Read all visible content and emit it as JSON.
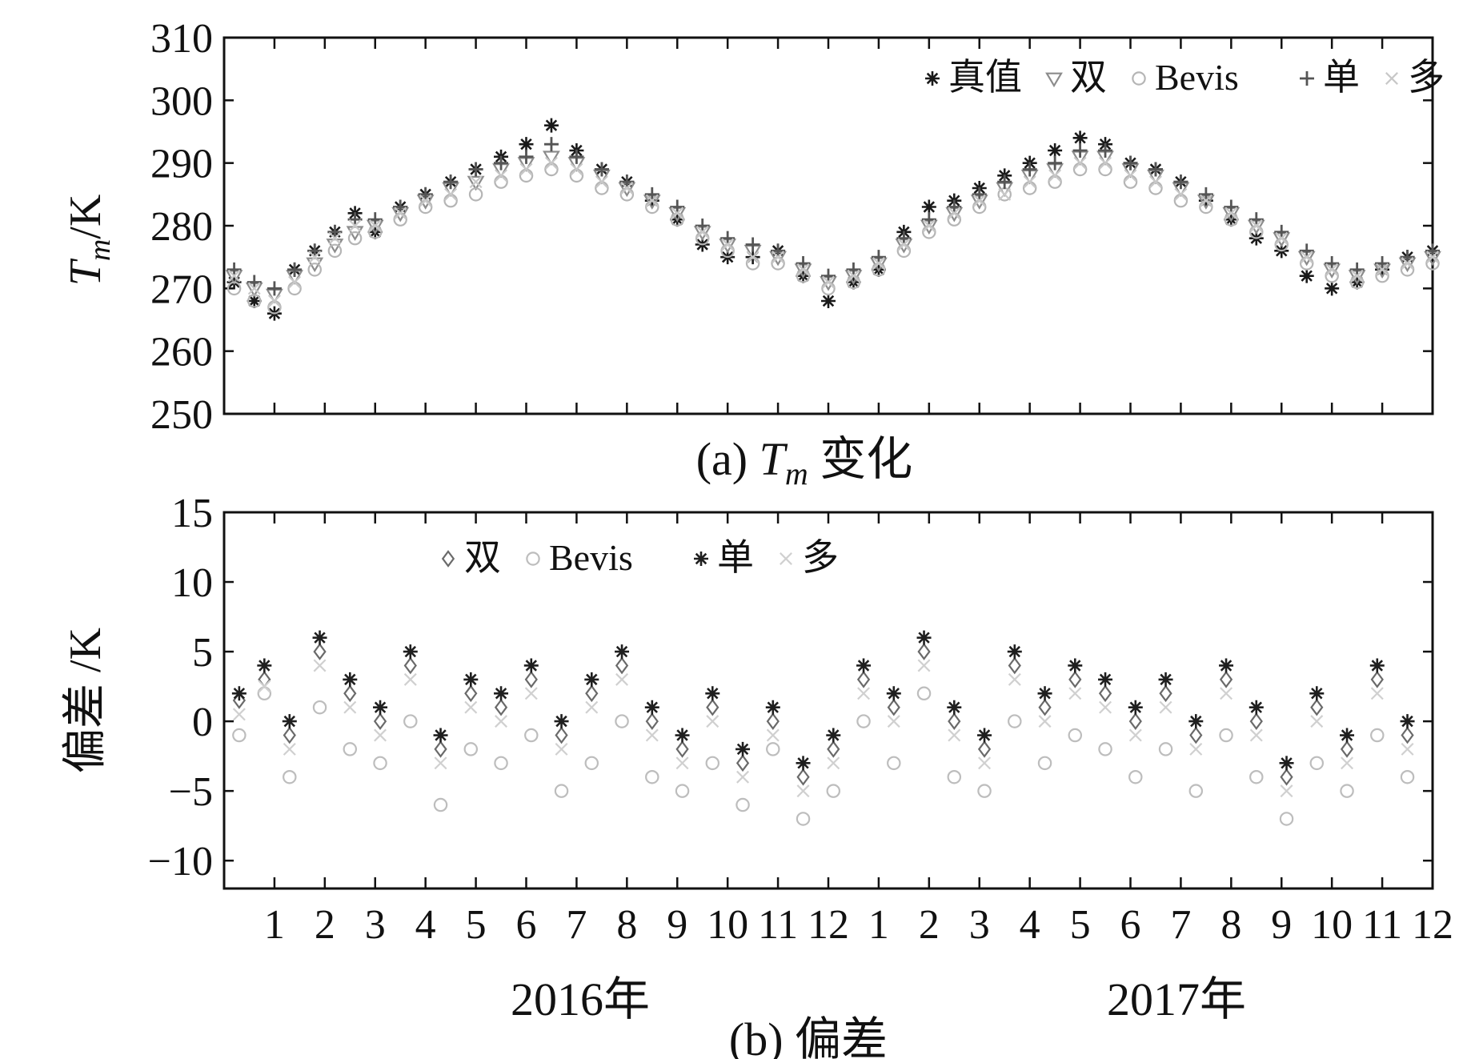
{
  "chart_data": [
    {
      "type": "scatter",
      "panel": "top",
      "caption_prefix": "(a) ",
      "caption_var": "T",
      "caption_sub": "m",
      "caption_suffix": " 变化",
      "ylabel_var": "T",
      "ylabel_sub": "m",
      "ylabel_unit": "/K",
      "ylim": [
        250,
        310
      ],
      "yticks": [
        250,
        260,
        270,
        280,
        290,
        300,
        310
      ],
      "legend_position": "top-right",
      "x_unit": "month index over 2016-2017",
      "xlim": [
        0,
        24
      ],
      "series": [
        {
          "name": "真值",
          "marker": "asterisk",
          "color": "#1a1a1a",
          "x": [
            0.2,
            0.6,
            1.0,
            1.4,
            1.8,
            2.2,
            2.6,
            3.0,
            3.5,
            4.0,
            4.5,
            5.0,
            5.5,
            6.0,
            6.5,
            7.0,
            7.5,
            8.0,
            8.5,
            9.0,
            9.5,
            10.0,
            10.5,
            11.0,
            11.5,
            12.0,
            12.5,
            13.0,
            13.5,
            14.0,
            14.5,
            15.0,
            15.5,
            16.0,
            16.5,
            17.0,
            17.5,
            18.0,
            18.5,
            19.0,
            19.5,
            20.0,
            20.5,
            21.0,
            21.5,
            22.0,
            22.5,
            23.0,
            23.5,
            24.0
          ],
          "y": [
            271,
            268,
            266,
            273,
            276,
            279,
            282,
            279,
            283,
            285,
            287,
            289,
            291,
            293,
            296,
            292,
            289,
            287,
            284,
            281,
            277,
            275,
            275,
            276,
            272,
            268,
            271,
            273,
            279,
            283,
            284,
            286,
            288,
            290,
            292,
            294,
            293,
            290,
            289,
            287,
            284,
            281,
            278,
            276,
            272,
            270,
            271,
            273,
            275,
            276
          ]
        },
        {
          "name": "双",
          "marker": "triangle-down",
          "color": "#8c8c8c",
          "x": [
            0.2,
            0.6,
            1.0,
            1.4,
            1.8,
            2.2,
            2.6,
            3.0,
            3.5,
            4.0,
            4.5,
            5.0,
            5.5,
            6.0,
            6.5,
            7.0,
            7.5,
            8.0,
            8.5,
            9.0,
            9.5,
            10.0,
            10.5,
            11.0,
            11.5,
            12.0,
            12.5,
            13.0,
            13.5,
            14.0,
            14.5,
            15.0,
            15.5,
            16.0,
            16.5,
            17.0,
            17.5,
            18.0,
            18.5,
            19.0,
            19.5,
            20.0,
            20.5,
            21.0,
            21.5,
            22.0,
            22.5,
            23.0,
            23.5,
            24.0
          ],
          "y": [
            272,
            270,
            269,
            272,
            274,
            277,
            279,
            280,
            282,
            284,
            286,
            287,
            289,
            290,
            291,
            290,
            288,
            286,
            284,
            282,
            279,
            277,
            276,
            275,
            273,
            271,
            272,
            274,
            277,
            280,
            282,
            284,
            286,
            288,
            289,
            291,
            291,
            289,
            288,
            286,
            284,
            282,
            280,
            278,
            275,
            273,
            272,
            273,
            274,
            275
          ]
        },
        {
          "name": "Bevis",
          "marker": "circle",
          "color": "#b5b5b5",
          "x": [
            0.2,
            0.6,
            1.0,
            1.4,
            1.8,
            2.2,
            2.6,
            3.0,
            3.5,
            4.0,
            4.5,
            5.0,
            5.5,
            6.0,
            6.5,
            7.0,
            7.5,
            8.0,
            8.5,
            9.0,
            9.5,
            10.0,
            10.5,
            11.0,
            11.5,
            12.0,
            12.5,
            13.0,
            13.5,
            14.0,
            14.5,
            15.0,
            15.5,
            16.0,
            16.5,
            17.0,
            17.5,
            18.0,
            18.5,
            19.0,
            19.5,
            20.0,
            20.5,
            21.0,
            21.5,
            22.0,
            22.5,
            23.0,
            23.5,
            24.0
          ],
          "y": [
            270,
            268,
            267,
            270,
            273,
            276,
            278,
            279,
            281,
            283,
            284,
            285,
            287,
            288,
            289,
            288,
            286,
            285,
            283,
            281,
            278,
            276,
            274,
            274,
            272,
            270,
            271,
            273,
            276,
            279,
            281,
            283,
            285,
            286,
            287,
            289,
            289,
            287,
            286,
            284,
            283,
            281,
            279,
            277,
            274,
            272,
            271,
            272,
            273,
            274
          ]
        },
        {
          "name": "单",
          "marker": "plus",
          "color": "#555555",
          "x": [
            0.2,
            0.6,
            1.0,
            1.4,
            1.8,
            2.2,
            2.6,
            3.0,
            3.5,
            4.0,
            4.5,
            5.0,
            5.5,
            6.0,
            6.5,
            7.0,
            7.5,
            8.0,
            8.5,
            9.0,
            9.5,
            10.0,
            10.5,
            11.0,
            11.5,
            12.0,
            12.5,
            13.0,
            13.5,
            14.0,
            14.5,
            15.0,
            15.5,
            16.0,
            16.5,
            17.0,
            17.5,
            18.0,
            18.5,
            19.0,
            19.5,
            20.0,
            20.5,
            21.0,
            21.5,
            22.0,
            22.5,
            23.0,
            23.5,
            24.0
          ],
          "y": [
            273,
            271,
            270,
            273,
            276,
            279,
            281,
            281,
            283,
            285,
            287,
            289,
            290,
            291,
            293,
            291,
            289,
            287,
            285,
            283,
            280,
            278,
            277,
            276,
            274,
            272,
            273,
            275,
            278,
            281,
            283,
            285,
            287,
            289,
            290,
            292,
            292,
            290,
            289,
            287,
            285,
            283,
            281,
            279,
            276,
            274,
            273,
            274,
            275,
            276
          ]
        },
        {
          "name": "多",
          "marker": "x",
          "color": "#c8c8c8",
          "x": [
            0.2,
            0.6,
            1.0,
            1.4,
            1.8,
            2.2,
            2.6,
            3.0,
            3.5,
            4.0,
            4.5,
            5.0,
            5.5,
            6.0,
            6.5,
            7.0,
            7.5,
            8.0,
            8.5,
            9.0,
            9.5,
            10.0,
            10.5,
            11.0,
            11.5,
            12.0,
            12.5,
            13.0,
            13.5,
            14.0,
            14.5,
            15.0,
            15.5,
            16.0,
            16.5,
            17.0,
            17.5,
            18.0,
            18.5,
            19.0,
            19.5,
            20.0,
            20.5,
            21.0,
            21.5,
            22.0,
            22.5,
            23.0,
            23.5,
            24.0
          ],
          "y": [
            272,
            270,
            268,
            271,
            275,
            278,
            280,
            280,
            282,
            284,
            285,
            287,
            288,
            289,
            290,
            289,
            287,
            286,
            284,
            282,
            279,
            277,
            275,
            275,
            273,
            271,
            272,
            274,
            277,
            280,
            282,
            284,
            285,
            287,
            288,
            290,
            290,
            288,
            287,
            285,
            284,
            282,
            280,
            278,
            275,
            273,
            272,
            273,
            274,
            275
          ]
        }
      ]
    },
    {
      "type": "scatter",
      "panel": "bottom",
      "caption": "(b) 偏差",
      "ylabel": "偏差 /K",
      "ylim": [
        -12,
        15
      ],
      "yticks": [
        -10,
        -5,
        0,
        5,
        10,
        15
      ],
      "legend_position": "top-left",
      "x_unit": "month index over 2016-2017",
      "xlim": [
        0,
        24
      ],
      "xtick_labels": [
        "1",
        "2",
        "3",
        "4",
        "5",
        "6",
        "7",
        "8",
        "9",
        "10",
        "11",
        "12",
        "1",
        "2",
        "3",
        "4",
        "5",
        "6",
        "7",
        "8",
        "9",
        "10",
        "11",
        "12"
      ],
      "year_labels": [
        "2016年",
        "2017年"
      ],
      "series": [
        {
          "name": "双",
          "marker": "diamond",
          "color": "#6a6a6a",
          "x": [
            0.3,
            0.8,
            1.3,
            1.9,
            2.5,
            3.1,
            3.7,
            4.3,
            4.9,
            5.5,
            6.1,
            6.7,
            7.3,
            7.9,
            8.5,
            9.1,
            9.7,
            10.3,
            10.9,
            11.5,
            12.1,
            12.7,
            13.3,
            13.9,
            14.5,
            15.1,
            15.7,
            16.3,
            16.9,
            17.5,
            18.1,
            18.7,
            19.3,
            19.9,
            20.5,
            21.1,
            21.7,
            22.3,
            22.9,
            23.5
          ],
          "y": [
            1.5,
            3,
            -1,
            5,
            2,
            0,
            4,
            -2,
            2,
            1,
            3,
            -1,
            2,
            4,
            0,
            -2,
            1,
            -3,
            0,
            -4,
            -2,
            3,
            1,
            5,
            0,
            -2,
            4,
            1,
            3,
            2,
            0,
            2,
            -1,
            3,
            0,
            -4,
            1,
            -2,
            3,
            -1
          ]
        },
        {
          "name": "Bevis",
          "marker": "circle",
          "color": "#bdbdbd",
          "x": [
            0.3,
            0.8,
            1.3,
            1.9,
            2.5,
            3.1,
            3.7,
            4.3,
            4.9,
            5.5,
            6.1,
            6.7,
            7.3,
            7.9,
            8.5,
            9.1,
            9.7,
            10.3,
            10.9,
            11.5,
            12.1,
            12.7,
            13.3,
            13.9,
            14.5,
            15.1,
            15.7,
            16.3,
            16.9,
            17.5,
            18.1,
            18.7,
            19.3,
            19.9,
            20.5,
            21.1,
            21.7,
            22.3,
            22.9,
            23.5
          ],
          "y": [
            -1,
            2,
            -4,
            1,
            -2,
            -3,
            0,
            -6,
            -2,
            -3,
            -1,
            -5,
            -3,
            0,
            -4,
            -5,
            -3,
            -6,
            -2,
            -7,
            -5,
            0,
            -3,
            2,
            -4,
            -5,
            0,
            -3,
            -1,
            -2,
            -4,
            -2,
            -5,
            -1,
            -4,
            -7,
            -3,
            -5,
            -1,
            -4
          ]
        },
        {
          "name": "单",
          "marker": "asterisk",
          "color": "#1f1f1f",
          "x": [
            0.3,
            0.8,
            1.3,
            1.9,
            2.5,
            3.1,
            3.7,
            4.3,
            4.9,
            5.5,
            6.1,
            6.7,
            7.3,
            7.9,
            8.5,
            9.1,
            9.7,
            10.3,
            10.9,
            11.5,
            12.1,
            12.7,
            13.3,
            13.9,
            14.5,
            15.1,
            15.7,
            16.3,
            16.9,
            17.5,
            18.1,
            18.7,
            19.3,
            19.9,
            20.5,
            21.1,
            21.7,
            22.3,
            22.9,
            23.5
          ],
          "y": [
            2,
            4,
            0,
            6,
            3,
            1,
            5,
            -1,
            3,
            2,
            4,
            0,
            3,
            5,
            1,
            -1,
            2,
            -2,
            1,
            -3,
            -1,
            4,
            2,
            6,
            1,
            -1,
            5,
            2,
            4,
            3,
            1,
            3,
            0,
            4,
            1,
            -3,
            2,
            -1,
            4,
            0
          ]
        },
        {
          "name": "多",
          "marker": "x",
          "color": "#d0d0d0",
          "x": [
            0.3,
            0.8,
            1.3,
            1.9,
            2.5,
            3.1,
            3.7,
            4.3,
            4.9,
            5.5,
            6.1,
            6.7,
            7.3,
            7.9,
            8.5,
            9.1,
            9.7,
            10.3,
            10.9,
            11.5,
            12.1,
            12.7,
            13.3,
            13.9,
            14.5,
            15.1,
            15.7,
            16.3,
            16.9,
            17.5,
            18.1,
            18.7,
            19.3,
            19.9,
            20.5,
            21.1,
            21.7,
            22.3,
            22.9,
            23.5
          ],
          "y": [
            0.5,
            2.5,
            -2,
            4,
            1,
            -1,
            3,
            -3,
            1,
            0,
            2,
            -2,
            1,
            3,
            -1,
            -3,
            0,
            -4,
            -1,
            -5,
            -3,
            2,
            0,
            4,
            -1,
            -3,
            3,
            0,
            2,
            1,
            -1,
            1,
            -2,
            2,
            -1,
            -5,
            0,
            -3,
            2,
            -2
          ]
        }
      ]
    }
  ]
}
